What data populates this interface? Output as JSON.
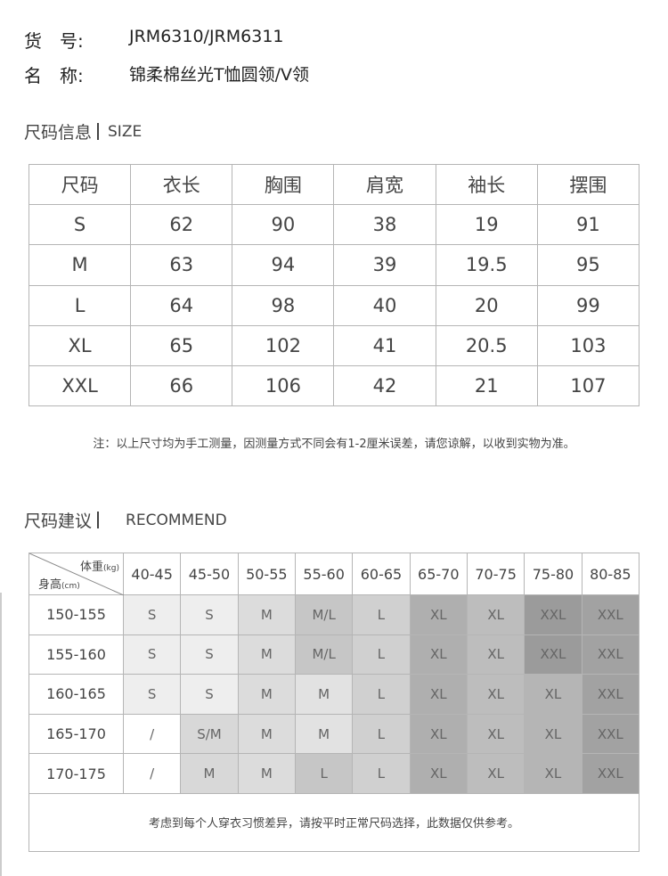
{
  "product": {
    "code_label": "货　号:",
    "code_value": "JRM6310/JRM6311",
    "name_label": "名　称:",
    "name_value": "锦柔棉丝光T恤圆领/V领"
  },
  "size_section": {
    "title_cn": "尺码信息",
    "title_en": "SIZE"
  },
  "size_table": {
    "headers": [
      "尺码",
      "衣长",
      "胸围",
      "肩宽",
      "袖长",
      "摆围"
    ],
    "rows": [
      [
        "S",
        "62",
        "90",
        "38",
        "19",
        "91"
      ],
      [
        "M",
        "63",
        "94",
        "39",
        "19.5",
        "95"
      ],
      [
        "L",
        "64",
        "98",
        "40",
        "20",
        "99"
      ],
      [
        "XL",
        "65",
        "102",
        "41",
        "20.5",
        "103"
      ],
      [
        "XXL",
        "66",
        "106",
        "42",
        "21",
        "107"
      ]
    ]
  },
  "size_note": "注：以上尺寸均为手工测量，因测量方式不同会有1-2厘米误差，请您谅解，以收到实物为准。",
  "recommend_section": {
    "title_cn": "尺码建议",
    "title_en": "RECOMMEND"
  },
  "recommend_table": {
    "corner_weight": "体重",
    "corner_weight_unit": "(kg)",
    "corner_height": "身高",
    "corner_height_unit": "(cm)",
    "weights": [
      "40-45",
      "45-50",
      "50-55",
      "55-60",
      "60-65",
      "65-70",
      "70-75",
      "75-80",
      "80-85"
    ],
    "rows": [
      {
        "height": "150-155",
        "cells": [
          {
            "v": "S",
            "c": "#eeeeee"
          },
          {
            "v": "S",
            "c": "#eeeeee"
          },
          {
            "v": "M",
            "c": "#dcdcdc"
          },
          {
            "v": "M/L",
            "c": "#c6c6c6"
          },
          {
            "v": "L",
            "c": "#d0d0d0"
          },
          {
            "v": "XL",
            "c": "#afafaf"
          },
          {
            "v": "XL",
            "c": "#bdbdbd"
          },
          {
            "v": "XXL",
            "c": "#9b9b9b"
          },
          {
            "v": "XXL",
            "c": "#a2a2a2"
          }
        ]
      },
      {
        "height": "155-160",
        "cells": [
          {
            "v": "S",
            "c": "#eeeeee"
          },
          {
            "v": "S",
            "c": "#eeeeee"
          },
          {
            "v": "M",
            "c": "#dcdcdc"
          },
          {
            "v": "M/L",
            "c": "#c6c6c6"
          },
          {
            "v": "L",
            "c": "#d0d0d0"
          },
          {
            "v": "XL",
            "c": "#afafaf"
          },
          {
            "v": "XL",
            "c": "#bdbdbd"
          },
          {
            "v": "XXL",
            "c": "#9b9b9b"
          },
          {
            "v": "XXL",
            "c": "#a2a2a2"
          }
        ]
      },
      {
        "height": "160-165",
        "cells": [
          {
            "v": "S",
            "c": "#eeeeee"
          },
          {
            "v": "S",
            "c": "#eeeeee"
          },
          {
            "v": "M",
            "c": "#dcdcdc"
          },
          {
            "v": "M",
            "c": "#e2e2e2"
          },
          {
            "v": "L",
            "c": "#d0d0d0"
          },
          {
            "v": "XL",
            "c": "#afafaf"
          },
          {
            "v": "XL",
            "c": "#bdbdbd"
          },
          {
            "v": "XL",
            "c": "#b5b5b5"
          },
          {
            "v": "XXL",
            "c": "#a2a2a2"
          }
        ]
      },
      {
        "height": "165-170",
        "cells": [
          {
            "v": "/",
            "c": "#ffffff"
          },
          {
            "v": "S/M",
            "c": "#d8d8d8"
          },
          {
            "v": "M",
            "c": "#dcdcdc"
          },
          {
            "v": "M",
            "c": "#e2e2e2"
          },
          {
            "v": "L",
            "c": "#d0d0d0"
          },
          {
            "v": "XL",
            "c": "#afafaf"
          },
          {
            "v": "XL",
            "c": "#bdbdbd"
          },
          {
            "v": "XL",
            "c": "#b5b5b5"
          },
          {
            "v": "XXL",
            "c": "#a2a2a2"
          }
        ]
      },
      {
        "height": "170-175",
        "cells": [
          {
            "v": "/",
            "c": "#ffffff"
          },
          {
            "v": "M",
            "c": "#d8d8d8"
          },
          {
            "v": "M",
            "c": "#dcdcdc"
          },
          {
            "v": "L",
            "c": "#c6c6c6"
          },
          {
            "v": "L",
            "c": "#d0d0d0"
          },
          {
            "v": "XL",
            "c": "#afafaf"
          },
          {
            "v": "XL",
            "c": "#bdbdbd"
          },
          {
            "v": "XL",
            "c": "#b5b5b5"
          },
          {
            "v": "XXL",
            "c": "#a2a2a2"
          }
        ]
      }
    ],
    "note": "考虑到每个人穿衣习惯差异，请按平时正常尺码选择，此数据仅供参考。"
  }
}
